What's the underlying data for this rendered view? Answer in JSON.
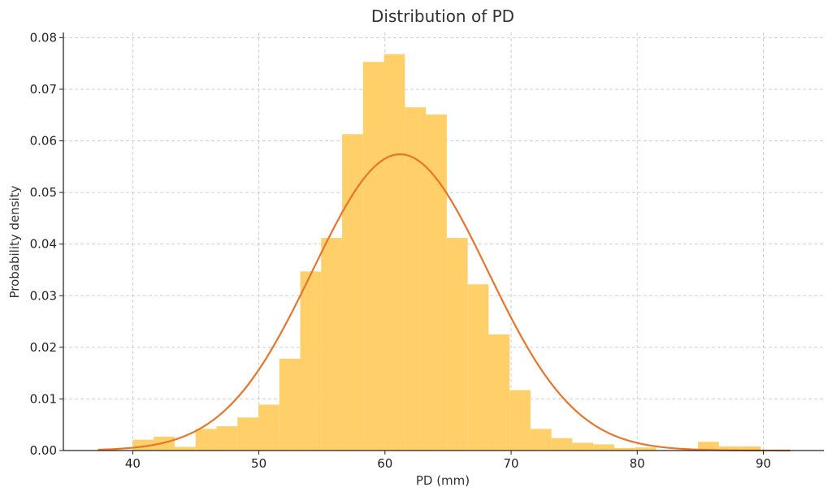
{
  "chart_data": {
    "type": "histogram",
    "title": "Distribution of PD",
    "xlabel": "PD (mm)",
    "ylabel": "Probability density",
    "xlim": [
      34.5,
      94.8
    ],
    "ylim": [
      0,
      0.081
    ],
    "x_ticks": [
      40,
      50,
      60,
      70,
      80,
      90
    ],
    "y_ticks": [
      0.0,
      0.01,
      0.02,
      0.03,
      0.04,
      0.05,
      0.06,
      0.07,
      0.08
    ],
    "x_tick_labels": [
      "40",
      "50",
      "60",
      "70",
      "80",
      "90"
    ],
    "y_tick_labels": [
      "0.00",
      "0.01",
      "0.02",
      "0.03",
      "0.04",
      "0.05",
      "0.06",
      "0.07",
      "0.08"
    ],
    "grid": true,
    "bin_edges": [
      40.0,
      41.66,
      43.32,
      44.98,
      46.64,
      48.3,
      49.96,
      51.62,
      53.28,
      54.94,
      56.6,
      58.26,
      59.92,
      61.58,
      63.24,
      64.9,
      66.56,
      68.22,
      69.88,
      71.54,
      73.2,
      74.86,
      76.52,
      78.18,
      79.84,
      81.5,
      83.16,
      84.82,
      86.48,
      88.14,
      89.8
    ],
    "bin_values": [
      0.0021,
      0.0027,
      0.0007,
      0.0042,
      0.0047,
      0.0064,
      0.0089,
      0.0178,
      0.0347,
      0.0412,
      0.0613,
      0.0753,
      0.0768,
      0.0665,
      0.0651,
      0.0412,
      0.0322,
      0.0225,
      0.0117,
      0.0042,
      0.0024,
      0.0015,
      0.0012,
      0.0005,
      0.0006,
      0.0,
      0.0,
      0.0017,
      0.0008,
      0.0008
    ],
    "density_curve": {
      "type": "normal_pdf",
      "mean": 61.2,
      "std": 6.95,
      "x_range": [
        37.3,
        92.1
      ]
    },
    "colors": {
      "bar": "#FFD06A",
      "line": "#E9742C",
      "axis": "#222222",
      "grid": "#CFCFCF"
    }
  }
}
